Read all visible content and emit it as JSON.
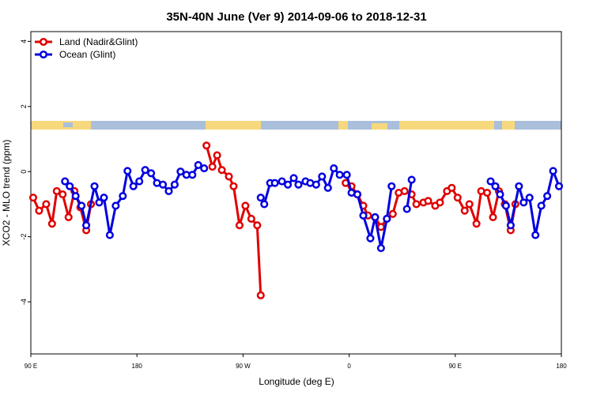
{
  "chart_data": {
    "type": "line",
    "title": "35N-40N June (Ver 9)   2014-09-06 to 2018-12-31",
    "x_label": "Longitude (deg E)",
    "y_label": "XCO2 - MLO trend (ppm)",
    "xlim": [
      90,
      540
    ],
    "ylim": [
      -5.6,
      4.3
    ],
    "xticks": [
      {
        "value": 90,
        "label": "90 E"
      },
      180,
      {
        "value": 270,
        "label": "90 W"
      },
      {
        "value": 360,
        "label": "0"
      },
      {
        "value": 450,
        "label": "90 E"
      },
      {
        "value": 540,
        "label": "180"
      }
    ],
    "yticks": [
      -4,
      -2,
      0,
      2,
      4
    ],
    "legend": "top-left",
    "series": [
      {
        "name": "Land (Nadir&Glint)",
        "color": "#e00000",
        "x": [
          92,
          97,
          103,
          108,
          112,
          117,
          122,
          127,
          132,
          137,
          141,
          null,
          239,
          244,
          248,
          252,
          258,
          262,
          267,
          272,
          277,
          282,
          285,
          null,
          357,
          362,
          367,
          372,
          376,
          382,
          387,
          392,
          397,
          402,
          407,
          413,
          417,
          423,
          427,
          433,
          437,
          443,
          447,
          452,
          458,
          462,
          468,
          472,
          477,
          482,
          487,
          492,
          497,
          501
        ],
        "values": [
          -0.8,
          -1.2,
          -1.0,
          -1.6,
          -0.6,
          -0.7,
          -1.4,
          -0.6,
          -1.1,
          -1.8,
          -1.0,
          null,
          0.8,
          0.15,
          0.5,
          0.05,
          -0.15,
          -0.45,
          -1.65,
          -1.05,
          -1.45,
          -1.65,
          -3.8,
          null,
          -0.35,
          -0.45,
          -0.7,
          -1.05,
          -1.35,
          -1.4,
          -1.7,
          -1.45,
          -1.3,
          -0.65,
          -0.6,
          -0.7,
          -1.0,
          -0.95,
          -0.9,
          -1.05,
          -0.95,
          -0.6,
          -0.5,
          -0.8,
          -1.2,
          -1.0,
          -1.6,
          -0.6,
          -0.65,
          -1.4,
          -0.6,
          -1.0,
          -1.8,
          -1.0
        ]
      },
      {
        "name": "Ocean (Glint)",
        "color": "#0000e0",
        "x": [
          119,
          123,
          128,
          133,
          137,
          144,
          148,
          152,
          157,
          162,
          168,
          172,
          177,
          182,
          187,
          192,
          197,
          202,
          207,
          212,
          217,
          222,
          227,
          232,
          237,
          null,
          285,
          288,
          293,
          297,
          303,
          308,
          313,
          317,
          323,
          327,
          332,
          337,
          342,
          347,
          352,
          358,
          362,
          367,
          372,
          378,
          382,
          387,
          392,
          396,
          null,
          409,
          413,
          null,
          480,
          484,
          488,
          493,
          497,
          504,
          508,
          513,
          518,
          523,
          528,
          533,
          538
        ],
        "values": [
          -0.3,
          -0.45,
          -0.75,
          -1.05,
          -1.65,
          -0.45,
          -0.95,
          -0.8,
          -1.95,
          -1.05,
          -0.75,
          0.02,
          -0.45,
          -0.3,
          0.05,
          -0.05,
          -0.35,
          -0.4,
          -0.6,
          -0.4,
          0.0,
          -0.1,
          -0.1,
          0.2,
          0.1,
          null,
          -0.8,
          -1.0,
          -0.35,
          -0.35,
          -0.3,
          -0.4,
          -0.2,
          -0.4,
          -0.3,
          -0.35,
          -0.4,
          -0.15,
          -0.5,
          0.1,
          -0.1,
          -0.1,
          -0.65,
          -0.7,
          -1.35,
          -2.05,
          -1.4,
          -2.35,
          -1.45,
          -0.45,
          null,
          -1.15,
          -0.25,
          null,
          -0.3,
          -0.45,
          -0.7,
          -1.05,
          -1.65,
          -0.45,
          -0.95,
          -0.8,
          -1.95,
          -1.05,
          -0.75,
          0.02,
          -0.45
        ]
      }
    ]
  }
}
